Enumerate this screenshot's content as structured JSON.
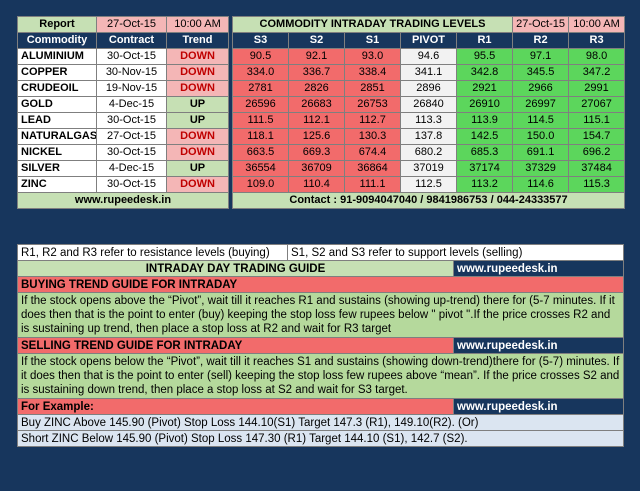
{
  "left_table": {
    "report_label": "Report",
    "report_date": "27-Oct-15",
    "report_time": "10:00 AM",
    "headers": [
      "Commodity",
      "Contract",
      "Trend"
    ],
    "rows": [
      {
        "name": "ALUMINIUM",
        "contract": "30-Oct-15",
        "trend": "DOWN"
      },
      {
        "name": "COPPER",
        "contract": "30-Nov-15",
        "trend": "DOWN"
      },
      {
        "name": "CRUDEOIL",
        "contract": "19-Nov-15",
        "trend": "DOWN"
      },
      {
        "name": "GOLD",
        "contract": "4-Dec-15",
        "trend": "UP"
      },
      {
        "name": "LEAD",
        "contract": "30-Oct-15",
        "trend": "UP"
      },
      {
        "name": "NATURALGAS",
        "contract": "27-Oct-15",
        "trend": "DOWN"
      },
      {
        "name": "NICKEL",
        "contract": "30-Oct-15",
        "trend": "DOWN"
      },
      {
        "name": "SILVER",
        "contract": "4-Dec-15",
        "trend": "UP"
      },
      {
        "name": "ZINC",
        "contract": "30-Oct-15",
        "trend": "DOWN"
      }
    ],
    "website": "www.rupeedesk.in"
  },
  "right_table": {
    "title": "COMMODITY INTRADAY TRADING LEVELS",
    "date": "27-Oct-15",
    "time": "10:00 AM",
    "headers": [
      "S3",
      "S2",
      "S1",
      "PIVOT",
      "R1",
      "R2",
      "R3"
    ],
    "rows": [
      [
        "90.5",
        "92.1",
        "93.0",
        "94.6",
        "95.5",
        "97.1",
        "98.0"
      ],
      [
        "334.0",
        "336.7",
        "338.4",
        "341.1",
        "342.8",
        "345.5",
        "347.2"
      ],
      [
        "2781",
        "2826",
        "2851",
        "2896",
        "2921",
        "2966",
        "2991"
      ],
      [
        "26596",
        "26683",
        "26753",
        "26840",
        "26910",
        "26997",
        "27067"
      ],
      [
        "111.5",
        "112.1",
        "112.7",
        "113.3",
        "113.9",
        "114.5",
        "115.1"
      ],
      [
        "118.1",
        "125.6",
        "130.3",
        "137.8",
        "142.5",
        "150.0",
        "154.7"
      ],
      [
        "663.5",
        "669.3",
        "674.4",
        "680.2",
        "685.3",
        "691.1",
        "696.2"
      ],
      [
        "36554",
        "36709",
        "36864",
        "37019",
        "37174",
        "37329",
        "37484"
      ],
      [
        "109.0",
        "110.4",
        "111.1",
        "112.5",
        "113.2",
        "114.6",
        "115.3"
      ]
    ],
    "contact": "Contact : 91-9094047040 / 9841986753 / 044-24333577"
  },
  "guide": {
    "resistance_note": "R1, R2 and R3 refer to resistance levels (buying)",
    "support_note": "S1, S2 and S3 refer to support levels (selling)",
    "title": "INTRADAY DAY TRADING GUIDE",
    "website": "www.rupeedesk.in",
    "buying_title": "BUYING TREND GUIDE FOR INTRADAY",
    "buying_text": "If the stock opens above the “Pivot”, wait till it reaches R1 and sustains (showing up-trend) there for (5-7 minutes. If it does then that is the point to enter (buy) keeping the stop loss few rupees below \" pivot \".If the price crosses R2 and is sustaining up trend, then place a stop loss at R2 and wait for R3 target",
    "selling_title": "SELLING TREND GUIDE FOR INTRADAY",
    "selling_text": "If the stock opens below the “Pivot”, wait till it reaches S1 and sustains (showing down-trend)there for (5-7) minutes. If it does then that is the point to enter (sell) keeping the stop loss few rupees above “mean”.  If the price crosses S2 and is sustaining down trend, then place a stop loss at S2 and wait for S3 target.",
    "example_title": "For Example:",
    "example_buy": "Buy ZINC Above 145.90 (Pivot) Stop Loss 144.10(S1) Target 147.3 (R1), 149.10(R2). (Or)",
    "example_short": "Short ZINC Below 145.90 (Pivot) Stop Loss 147.30 (R1) Target 144.10 (S1), 142.7 (S2)."
  },
  "colors": {
    "navy": "#17365d",
    "support_red": "#f26b6b",
    "resistance_green": "#5cd65c",
    "header_green": "#c6e0b4",
    "pink": "#f4b6b6"
  }
}
